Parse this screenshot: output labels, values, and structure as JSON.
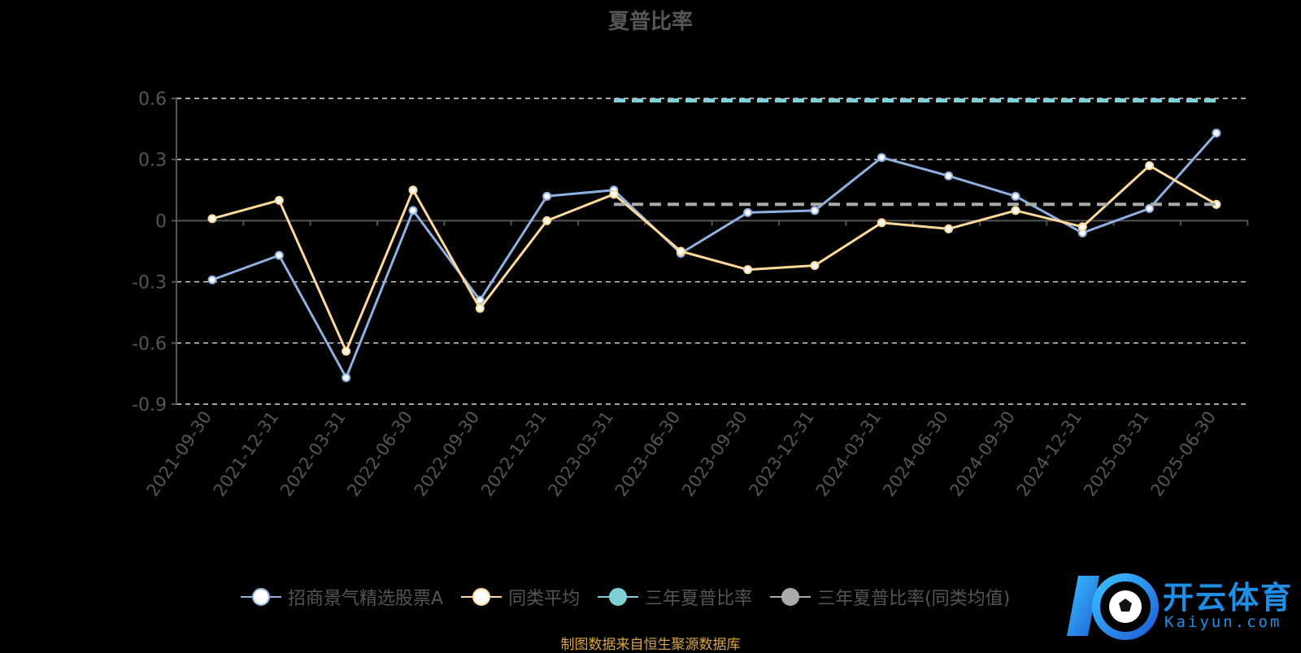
{
  "header": {
    "title": "夏普比率"
  },
  "footer": {
    "source": "制图数据来自恒生聚源数据库"
  },
  "watermark": {
    "brand": "开云体育",
    "domain": "Kaiyun.com"
  },
  "chart_data": {
    "type": "line",
    "title": "夏普比率",
    "xlabel": "",
    "ylabel": "",
    "ylim": [
      -0.9,
      0.6
    ],
    "yticks": [
      0.6,
      0.3,
      0,
      -0.3,
      -0.6,
      -0.9
    ],
    "yticks_labels": [
      "0.6",
      "0.3",
      "0",
      "-0.3",
      "-0.6",
      "-0.9"
    ],
    "grid": true,
    "legend_position": "bottom",
    "categories": [
      "2021-09-30",
      "2021-12-31",
      "2022-03-31",
      "2022-06-30",
      "2022-09-30",
      "2022-12-31",
      "2023-03-31",
      "2023-06-30",
      "2023-09-30",
      "2023-12-31",
      "2024-03-31",
      "2024-06-30",
      "2024-09-30",
      "2024-12-31",
      "2025-03-31",
      "2025-06-30"
    ],
    "series": [
      {
        "name": "招商景气精选股票A",
        "color": "#8fb0e0",
        "style": "solid",
        "values": [
          -0.29,
          -0.17,
          -0.77,
          0.05,
          -0.39,
          0.12,
          0.15,
          -0.16,
          0.04,
          0.05,
          0.31,
          0.22,
          0.12,
          -0.06,
          0.06,
          0.43
        ]
      },
      {
        "name": "同类平均",
        "color": "#ffd99a",
        "style": "solid",
        "values": [
          0.01,
          0.1,
          -0.64,
          0.15,
          -0.43,
          0.0,
          0.13,
          -0.15,
          -0.24,
          -0.22,
          -0.01,
          -0.04,
          0.05,
          -0.03,
          0.27,
          0.08
        ]
      },
      {
        "name": "三年夏普比率",
        "color": "#7fcfd6",
        "style": "dashed",
        "values": [
          null,
          null,
          null,
          null,
          null,
          null,
          0.59,
          0.59,
          0.59,
          0.59,
          0.59,
          0.59,
          0.59,
          0.59,
          0.59,
          0.59
        ]
      },
      {
        "name": "三年夏普比率(同类均值)",
        "color": "#aaaaaa",
        "style": "dashed",
        "values": [
          null,
          null,
          null,
          null,
          null,
          null,
          0.08,
          0.08,
          0.08,
          0.08,
          0.08,
          0.08,
          0.08,
          0.08,
          0.08,
          0.08
        ]
      }
    ]
  }
}
